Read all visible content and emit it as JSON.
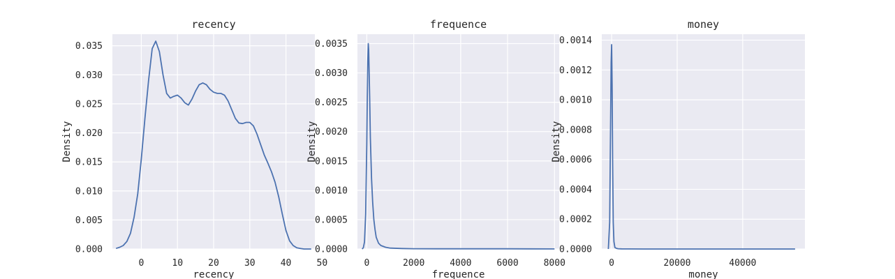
{
  "chart_data": [
    {
      "type": "line",
      "title": "recency",
      "xlabel": "recency",
      "ylabel": "Density",
      "xlim": [
        -8,
        48
      ],
      "ylim": [
        0,
        0.037
      ],
      "xticks": [
        0,
        10,
        20,
        30,
        40,
        50
      ],
      "yticks": [
        0,
        0.005,
        0.01,
        0.015,
        0.02,
        0.025,
        0.03,
        0.035
      ],
      "ytick_labels": [
        "0.000",
        "0.005",
        "0.010",
        "0.015",
        "0.020",
        "0.025",
        "0.030",
        "0.035"
      ],
      "series": [
        {
          "x": [
            -7,
            -6,
            -5,
            -4,
            -3,
            -2,
            -1,
            0,
            1,
            2,
            3,
            4,
            5,
            6,
            7,
            8,
            9,
            10,
            11,
            12,
            13,
            14,
            15,
            16,
            17,
            18,
            19,
            20,
            21,
            22,
            23,
            24,
            25,
            26,
            27,
            28,
            29,
            30,
            31,
            32,
            33,
            34,
            35,
            36,
            37,
            38,
            39,
            40,
            41,
            42,
            43,
            44,
            45,
            46,
            47
          ],
          "y": [
            0.0001,
            0.0003,
            0.0006,
            0.0013,
            0.0027,
            0.0055,
            0.0095,
            0.0155,
            0.0225,
            0.029,
            0.0345,
            0.0358,
            0.034,
            0.03,
            0.0268,
            0.026,
            0.0263,
            0.0265,
            0.026,
            0.0252,
            0.0248,
            0.0258,
            0.0272,
            0.0283,
            0.0286,
            0.0283,
            0.0275,
            0.027,
            0.0268,
            0.0268,
            0.0265,
            0.0255,
            0.024,
            0.0225,
            0.0217,
            0.0216,
            0.0218,
            0.0218,
            0.0212,
            0.0198,
            0.018,
            0.0162,
            0.0148,
            0.0133,
            0.0115,
            0.009,
            0.006,
            0.0032,
            0.0014,
            0.0006,
            0.0002,
            0.0001,
            0.0,
            0.0,
            0.0
          ]
        }
      ]
    },
    {
      "type": "line",
      "title": "frequence",
      "xlabel": "frequence",
      "ylabel": "Density",
      "xlim": [
        -400,
        8200
      ],
      "ylim": [
        0,
        0.00366
      ],
      "xticks": [
        0,
        2000,
        4000,
        6000,
        8000
      ],
      "yticks": [
        0,
        0.0005,
        0.001,
        0.0015,
        0.002,
        0.0025,
        0.003,
        0.0035
      ],
      "ytick_labels": [
        "0.0000",
        "0.0005",
        "0.0010",
        "0.0015",
        "0.0020",
        "0.0025",
        "0.0030",
        "0.0035"
      ],
      "series": [
        {
          "x": [
            -200,
            -150,
            -100,
            -50,
            0,
            20,
            40,
            60,
            80,
            100,
            120,
            150,
            200,
            250,
            300,
            350,
            400,
            500,
            600,
            800,
            1000,
            1500,
            2000,
            3000,
            4000,
            5000,
            6000,
            7000,
            8000
          ],
          "y": [
            0.0,
            2e-05,
            0.00012,
            0.0006,
            0.0018,
            0.0026,
            0.0032,
            0.0035,
            0.0034,
            0.003,
            0.0026,
            0.0019,
            0.0012,
            0.0008,
            0.0005,
            0.00033,
            0.0002,
            0.0001,
            6e-05,
            3e-05,
            1.5e-05,
            8e-06,
            5e-06,
            3e-06,
            3e-06,
            3e-06,
            3e-06,
            2e-06,
            1e-06
          ]
        }
      ]
    },
    {
      "type": "line",
      "title": "money",
      "xlabel": "money",
      "ylabel": "Density",
      "xlim": [
        -3000,
        59000
      ],
      "ylim": [
        0,
        0.00144
      ],
      "xticks": [
        0,
        20000,
        40000
      ],
      "yticks": [
        0,
        0.0002,
        0.0004,
        0.0006,
        0.0008,
        0.001,
        0.0012,
        0.0014
      ],
      "ytick_labels": [
        "0.0000",
        "0.0002",
        "0.0004",
        "0.0006",
        "0.0008",
        "0.0010",
        "0.0012",
        "0.0014"
      ],
      "series": [
        {
          "x": [
            -1000,
            -600,
            -300,
            -150,
            0,
            150,
            300,
            500,
            700,
            1000,
            1500,
            2000,
            3000,
            5000,
            10000,
            20000,
            30000,
            40000,
            50000,
            56000
          ],
          "y": [
            0.0,
            0.00018,
            0.0009,
            0.00125,
            0.00137,
            0.0011,
            0.0006,
            0.00018,
            5e-05,
            1e-05,
            4e-06,
            2e-06,
            1e-06,
            5e-07,
            2e-07,
            1e-07,
            1e-07,
            1e-07,
            1e-07,
            0.0
          ]
        }
      ]
    }
  ]
}
